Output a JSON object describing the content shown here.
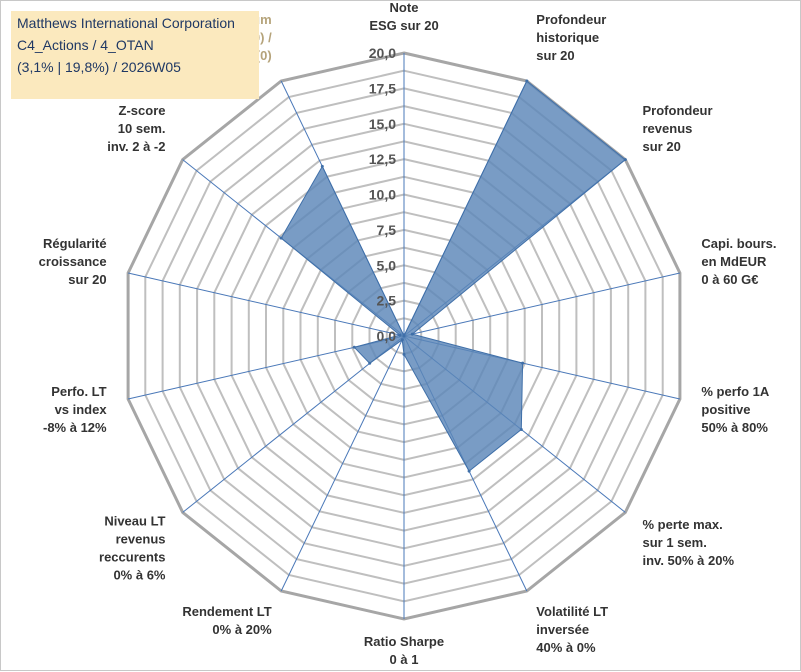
{
  "header": {
    "line1": "Matthews International Corporation",
    "line2": "C4_Actions / 4_OTAN",
    "line3": "(3,1% | 19,8%) / 2026W05"
  },
  "chart_data": {
    "type": "radar",
    "title": "",
    "rmax": 20,
    "ticks": [
      "0,0",
      "2,5",
      "5,0",
      "7,5",
      "10,0",
      "12,5",
      "15,0",
      "17,5",
      "20,0"
    ],
    "grid_rings": 16,
    "colors": {
      "fill": "#5b86b8",
      "stroke": "#3f6fa8",
      "axis": "#4a78b8",
      "grid": "#bfbfbf",
      "outer": "#a6a6a6"
    },
    "categories": [
      {
        "lines": [
          "Note",
          "ESG sur 20"
        ]
      },
      {
        "lines": [
          "Profondeur",
          "historique",
          "sur 20"
        ]
      },
      {
        "lines": [
          "Profondeur",
          "revenus",
          "sur 20"
        ]
      },
      {
        "lines": [
          "Capi. bours.",
          "en MdEUR",
          "0 à 60 G€"
        ]
      },
      {
        "lines": [
          "% perfo 1A",
          "positive",
          "50% à 80%"
        ]
      },
      {
        "lines": [
          "% perte max.",
          "sur 1 sem.",
          "inv. 50% à 20%"
        ]
      },
      {
        "lines": [
          "Volatilité LT",
          "inversée",
          "40% à 0%"
        ]
      },
      {
        "lines": [
          "Ratio Sharpe",
          "0 à 1"
        ]
      },
      {
        "lines": [
          "Rendement LT",
          "0% à 20%"
        ]
      },
      {
        "lines": [
          "Niveau LT",
          "revenus",
          "reccurents",
          "0% à 6%"
        ]
      },
      {
        "lines": [
          "Perfo. LT",
          "vs index",
          "-8% à 12%"
        ]
      },
      {
        "lines": [
          "Régularité",
          "croissance",
          "sur 20"
        ]
      },
      {
        "lines": [
          "Z-score",
          "10 sem.",
          "inv. 2 à -2"
        ]
      },
      {
        "lines": [
          "Momentum",
          "Achat (20) /",
          "Vente (0)"
        ]
      }
    ],
    "series": [
      {
        "values": [
          0,
          20,
          20,
          0.6,
          8.6,
          10.6,
          10.6,
          1.3,
          0.3,
          3.1,
          3.6,
          0.3,
          11.1,
          13.3
        ]
      }
    ]
  }
}
